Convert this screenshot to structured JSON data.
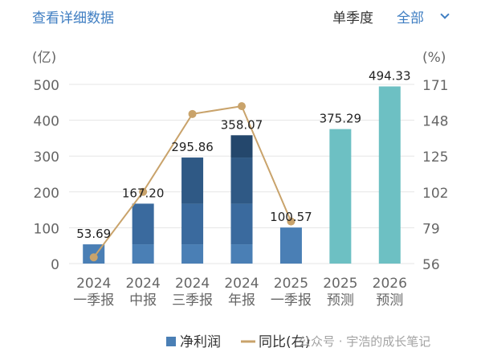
{
  "header": {
    "detail_link": "查看详细数据",
    "period_selector": "单季度",
    "scope_selector": "全部"
  },
  "chart_data": {
    "type": "bar",
    "categories": [
      [
        "2024",
        "一季报"
      ],
      [
        "2024",
        "中报"
      ],
      [
        "2024",
        "三季报"
      ],
      [
        "2024",
        "年报"
      ],
      [
        "2025",
        "一季报"
      ],
      [
        "2025",
        "预测"
      ],
      [
        "2026",
        "预测"
      ]
    ],
    "series": [
      {
        "name": "净利润",
        "type": "bar",
        "axis": "left",
        "values": [
          53.69,
          167.2,
          295.86,
          358.07,
          100.57,
          375.29,
          494.33
        ],
        "labels": [
          "53.69",
          "167.20",
          "295.86",
          "358.07",
          "100.57",
          "375.29",
          "494.33"
        ],
        "forecast": [
          false,
          false,
          false,
          false,
          false,
          true,
          true
        ],
        "quarter_stack": [
          [
            53.69
          ],
          [
            53.69,
            113.51
          ],
          [
            53.69,
            113.51,
            128.66
          ],
          [
            53.69,
            113.51,
            128.66,
            62.21
          ],
          [
            100.57
          ],
          [
            375.29
          ],
          [
            494.33
          ]
        ]
      },
      {
        "name": "同比(右)",
        "type": "line",
        "axis": "right",
        "values": [
          60,
          102,
          152,
          157,
          83,
          null,
          null
        ]
      }
    ],
    "left_axis": {
      "unit": "(亿)",
      "ticks": [
        "0",
        "100",
        "200",
        "300",
        "400",
        "500"
      ],
      "ylim": [
        0,
        500
      ]
    },
    "right_axis": {
      "unit": "(%)",
      "ticks": [
        "56",
        "79",
        "102",
        "125",
        "148",
        "171"
      ],
      "ylim": [
        56,
        171
      ]
    },
    "grid": true,
    "legend_position": "bottom",
    "colors": {
      "bar_layers": [
        "#4a7fb5",
        "#3a6a9e",
        "#2f5985",
        "#24476c"
      ],
      "forecast": "#6dc0c3",
      "line": "#c9a36b",
      "axis_text": "#666666",
      "grid": "#e5e5e5",
      "label": "#222222"
    }
  },
  "watermark": "公众号 · 宇浩的成长笔记"
}
